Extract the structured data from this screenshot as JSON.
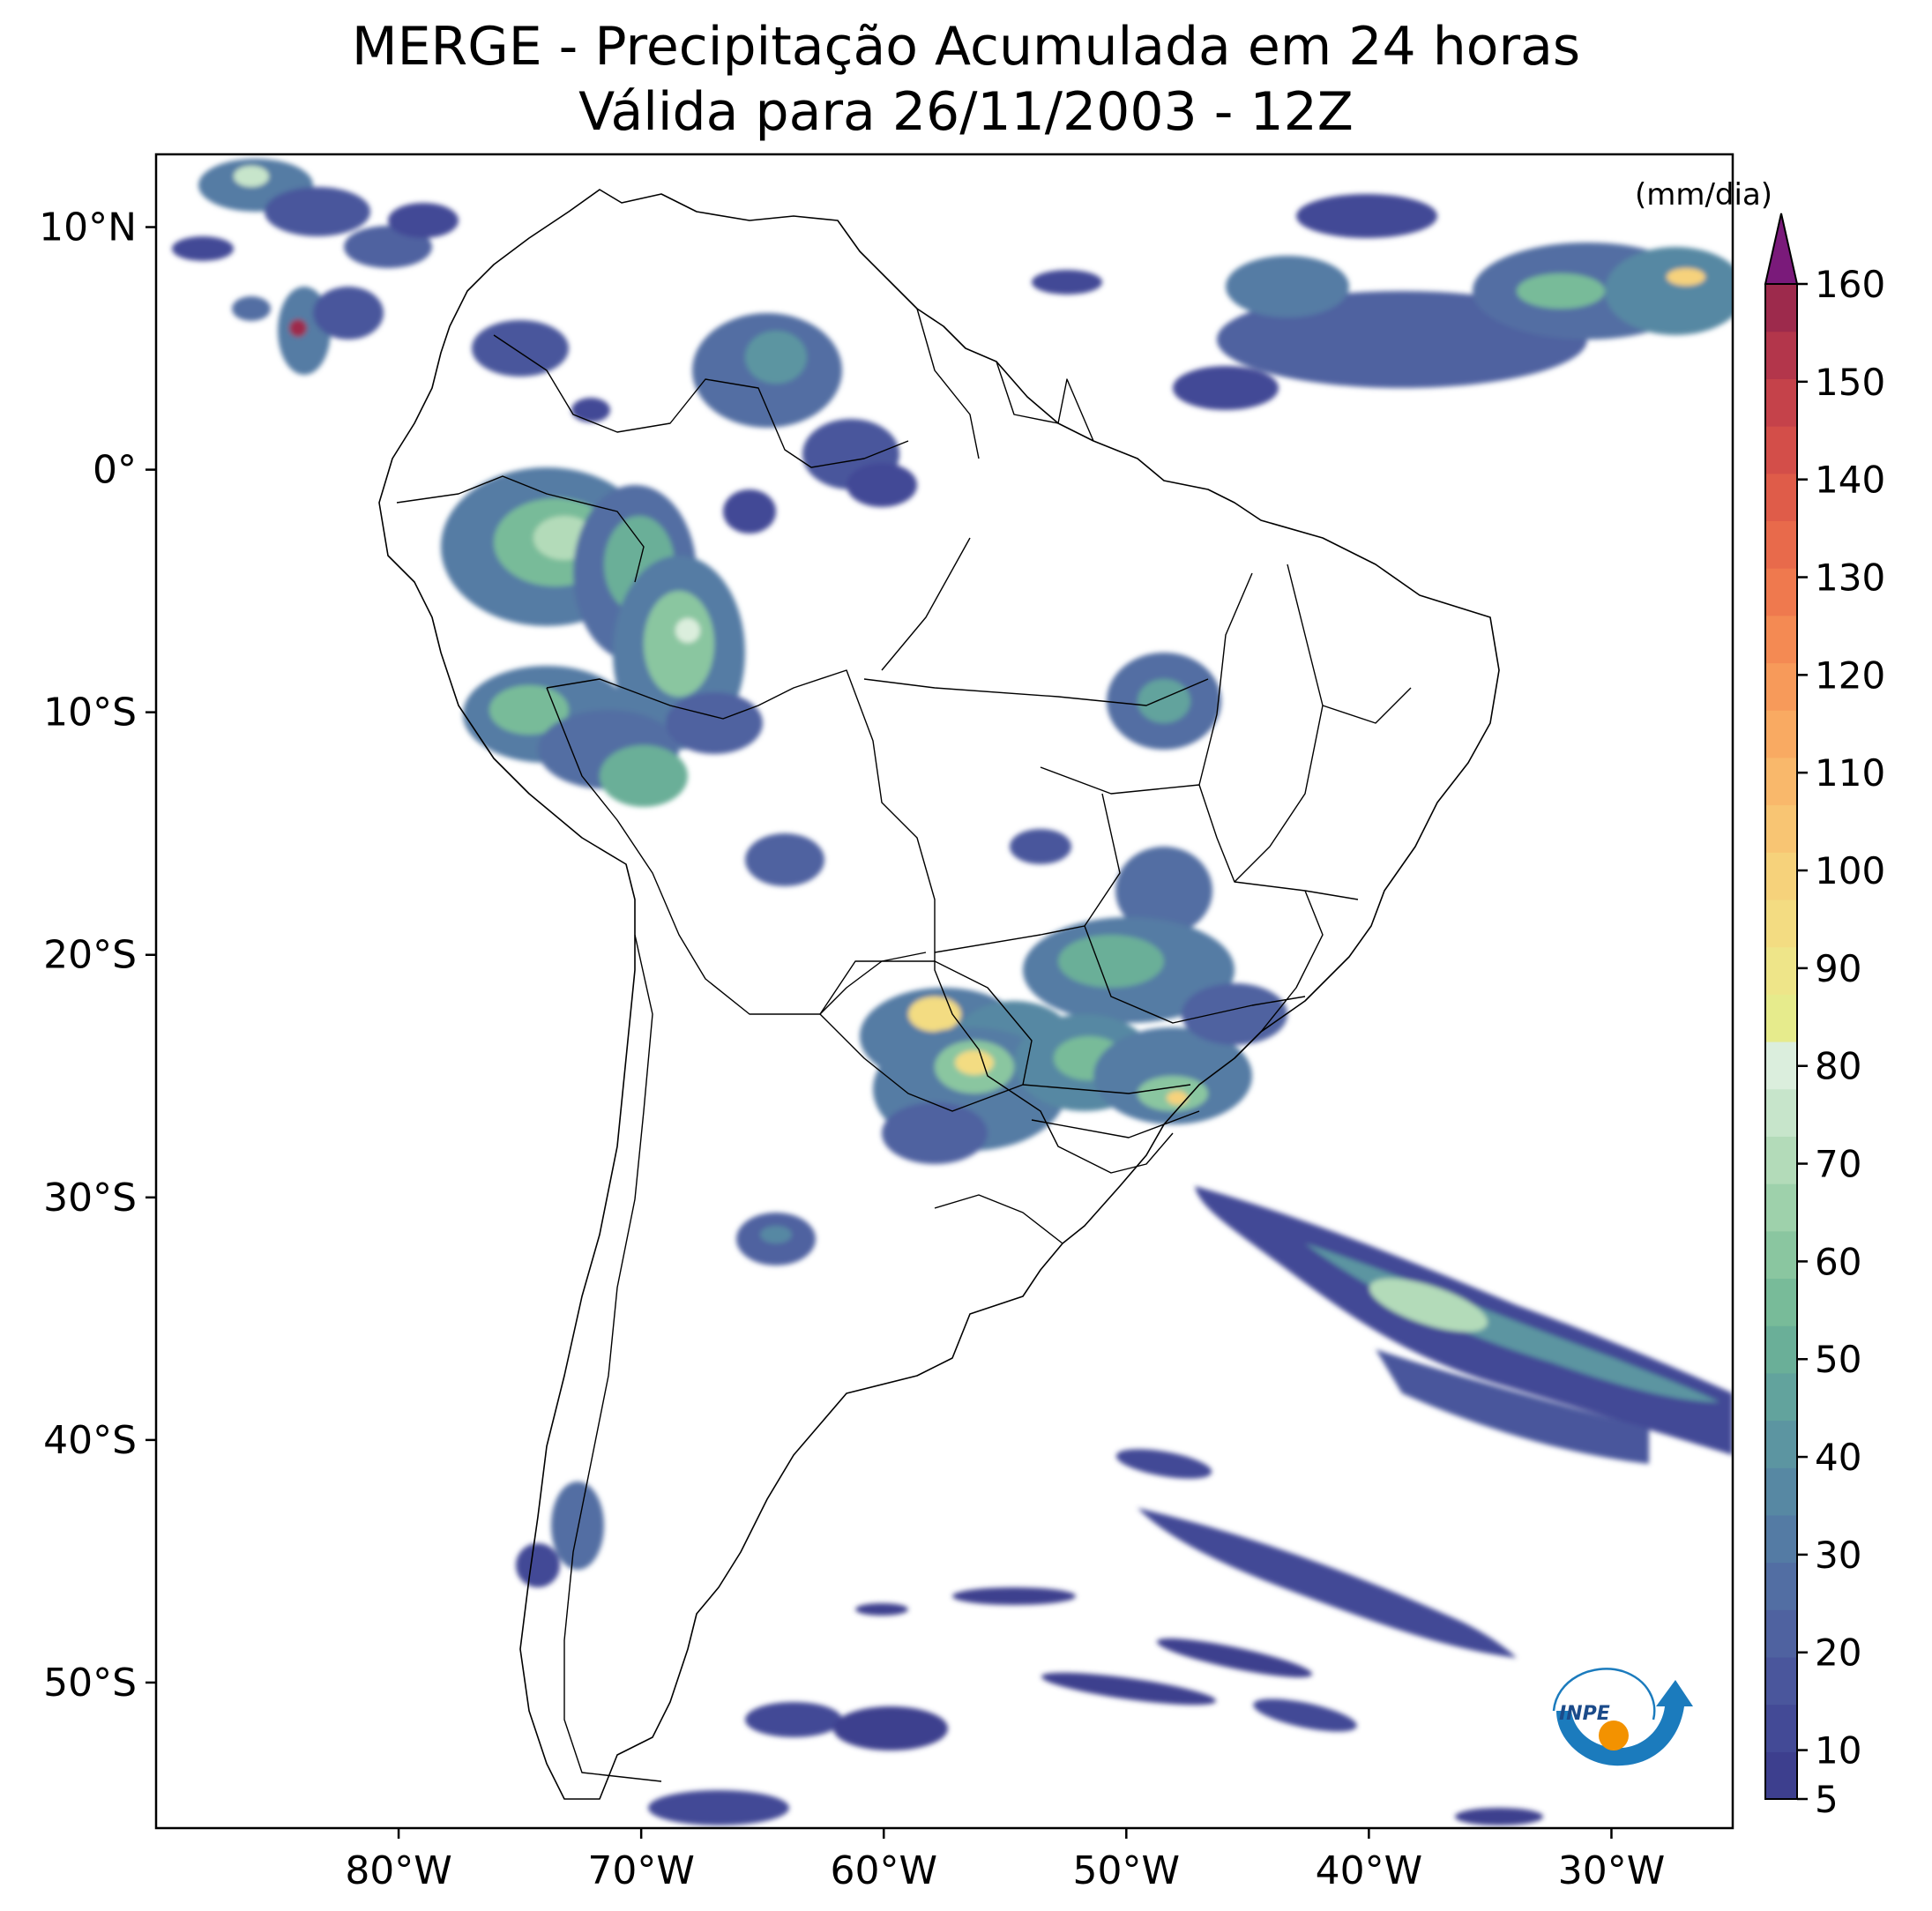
{
  "title": {
    "line1": "MERGE - Precipitação Acumulada em 24 horas",
    "line2": "Válida para 26/11/2003 - 12Z"
  },
  "axes": {
    "lat_labels": [
      "10°N",
      "0°",
      "10°S",
      "20°S",
      "30°S",
      "40°S",
      "50°S"
    ],
    "lon_labels": [
      "80°W",
      "70°W",
      "60°W",
      "50°W",
      "40°W",
      "30°W"
    ],
    "lat_values": [
      10,
      0,
      -10,
      -20,
      -30,
      -40,
      -50
    ],
    "lon_values": [
      -80,
      -70,
      -60,
      -50,
      -40,
      -30
    ],
    "lon_range": [
      -90,
      -25
    ],
    "lat_range": [
      -56,
      13
    ]
  },
  "colorbar": {
    "unit": "(mm/dia)",
    "tick_labels": [
      "5",
      "10",
      "20",
      "30",
      "40",
      "50",
      "60",
      "70",
      "80",
      "90",
      "100",
      "110",
      "120",
      "130",
      "140",
      "150",
      "160"
    ],
    "tick_values": [
      5,
      10,
      20,
      30,
      40,
      50,
      60,
      70,
      80,
      90,
      100,
      110,
      120,
      130,
      140,
      150,
      160
    ],
    "extend": "max",
    "colors": [
      "#3d3f8e",
      "#434a96",
      "#4a569c",
      "#4f62a0",
      "#526ea3",
      "#547ba4",
      "#5788a3",
      "#5c95a1",
      "#62a39d",
      "#6aaf98",
      "#78bb99",
      "#8ac6a0",
      "#9ed1ab",
      "#b3dbb9",
      "#c7e5cb",
      "#dbeedd",
      "#e6eb8c",
      "#eee589",
      "#f3dc82",
      "#f6d27b",
      "#f8c573",
      "#f9b86b",
      "#f9aa62",
      "#f79a5a",
      "#f48a53",
      "#ef794e",
      "#e86a4b",
      "#df5c49",
      "#d34e49",
      "#c5424a",
      "#b3364b",
      "#9d2a4c"
    ],
    "over_color": "#7a1a7a"
  },
  "logo": {
    "text": "INPE"
  }
}
